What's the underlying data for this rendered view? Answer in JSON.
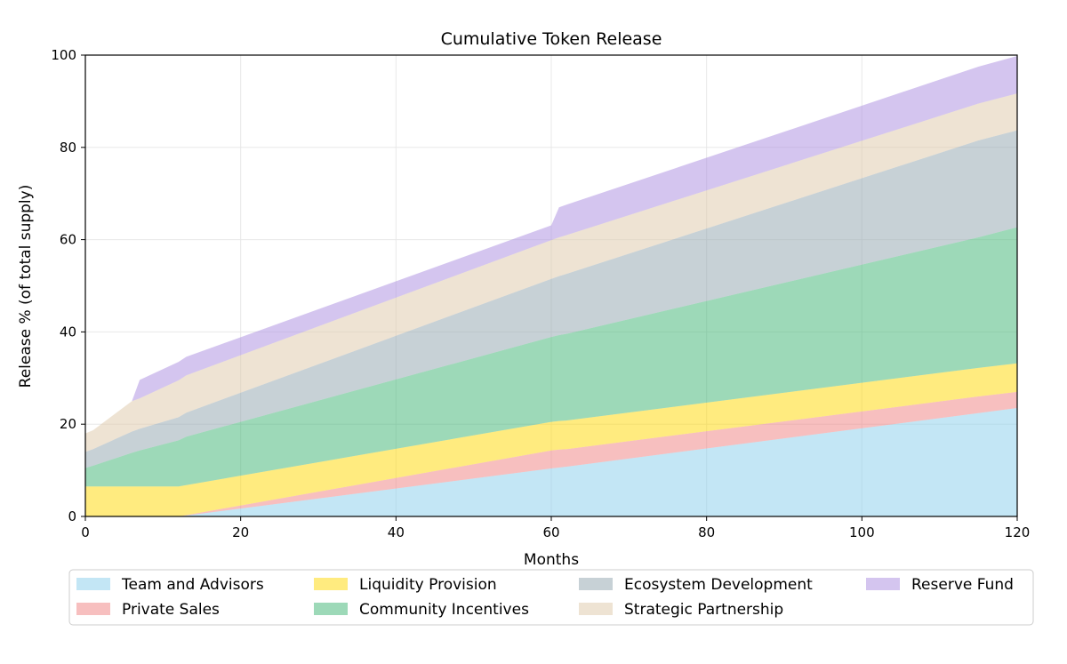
{
  "chart_data": {
    "type": "area",
    "stacked": true,
    "title": "Cumulative Token Release",
    "xlabel": "Months",
    "ylabel": "Release % (of total supply)",
    "xlim": [
      0,
      120
    ],
    "ylim": [
      0,
      100
    ],
    "xticks": [
      0,
      20,
      40,
      60,
      80,
      100,
      120
    ],
    "yticks": [
      0,
      20,
      40,
      60,
      80,
      100
    ],
    "grid": true,
    "legend": "bottom",
    "x": [
      0,
      1,
      6,
      7,
      12,
      13,
      60,
      61,
      62,
      115,
      120
    ],
    "series": [
      {
        "name": "Team and Advisors",
        "color": "#87CEEB",
        "values": [
          0,
          0,
          0,
          0,
          0,
          0.2,
          10.4,
          10.6,
          10.8,
          22.4,
          23.5
        ]
      },
      {
        "name": "Private Sales",
        "color": "#F08080",
        "values": [
          0,
          0,
          0,
          0,
          0,
          0.1,
          3.9,
          3.9,
          3.8,
          3.6,
          3.5
        ]
      },
      {
        "name": "Liquidity Provision",
        "color": "#FFD700",
        "values": [
          6.5,
          6.5,
          6.5,
          6.5,
          6.5,
          6.5,
          6.2,
          6.2,
          6.2,
          6.2,
          6.2
        ]
      },
      {
        "name": "Community Incentives",
        "color": "#3CB371",
        "values": [
          4.0,
          4.5,
          7.3,
          7.8,
          10.0,
          10.5,
          18.4,
          18.6,
          18.8,
          28.3,
          29.5
        ]
      },
      {
        "name": "Ecosystem Development",
        "color": "#8FA3AD",
        "values": [
          3.5,
          3.6,
          4.6,
          4.7,
          5.0,
          5.2,
          12.6,
          12.8,
          13.0,
          21.0,
          21.0
        ]
      },
      {
        "name": "Strategic Partnership",
        "color": "#DEC8A8",
        "values": [
          4.0,
          4.1,
          6.6,
          6.6,
          8.0,
          8.1,
          8.4,
          8.4,
          8.4,
          8.0,
          8.0
        ]
      },
      {
        "name": "Reserve Fund",
        "color": "#A98BE0",
        "values": [
          0,
          0,
          0,
          4.0,
          4.0,
          4.0,
          3.2,
          6.5,
          6.6,
          8.0,
          8.1
        ]
      }
    ]
  }
}
